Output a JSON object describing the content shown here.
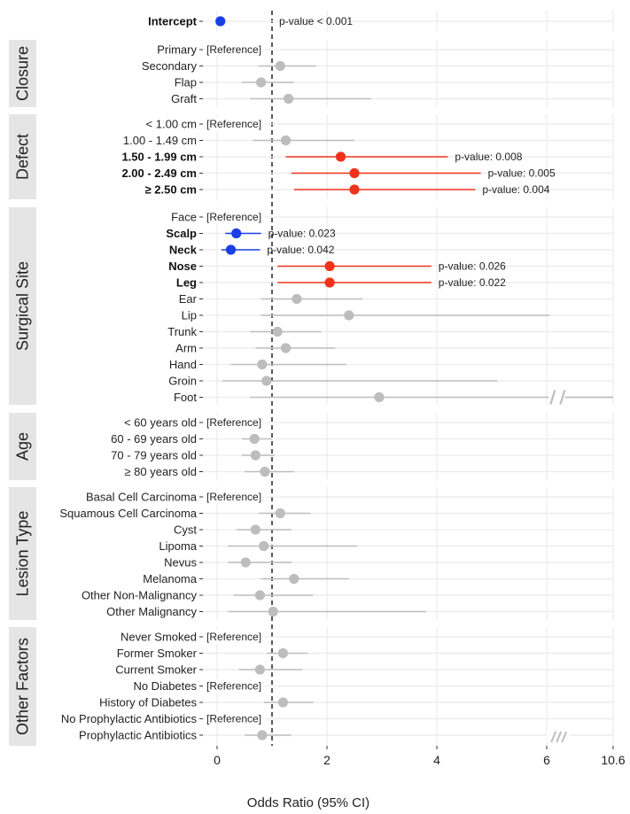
{
  "chart_data": {
    "type": "forest",
    "xlabel": "Odds Ratio (95% CI)",
    "x_ticks": [
      "0",
      "2",
      "4",
      "6",
      "10.6"
    ],
    "xlim": [
      0,
      10.6
    ],
    "reference_line": 1,
    "reference_text": "[Reference]",
    "colors": {
      "significant_high": "#f0321a",
      "significant_low": "#1a3fe6",
      "nonsignificant": "#bdbdbd",
      "panel_grid": "#ebebeb",
      "strip_bg": "#e5e5e5"
    },
    "panels": [
      {
        "label": "",
        "rows": [
          {
            "label": "Intercept",
            "bold": true,
            "or": 0.06,
            "lo": 0.06,
            "hi": 0.06,
            "color": "low",
            "pvalue": "p-value < 0.001"
          }
        ]
      },
      {
        "label": "Closure",
        "rows": [
          {
            "label": "Primary",
            "ref": true
          },
          {
            "label": "Secondary",
            "or": 1.15,
            "lo": 0.75,
            "hi": 1.8,
            "color": "ns"
          },
          {
            "label": "Flap",
            "or": 0.8,
            "lo": 0.45,
            "hi": 1.4,
            "color": "ns"
          },
          {
            "label": "Graft",
            "or": 1.3,
            "lo": 0.6,
            "hi": 2.8,
            "color": "ns"
          }
        ]
      },
      {
        "label": "Defect",
        "rows": [
          {
            "label": "< 1.00 cm",
            "ref": true
          },
          {
            "label": "1.00 - 1.49 cm",
            "or": 1.25,
            "lo": 0.65,
            "hi": 2.5,
            "color": "ns"
          },
          {
            "label": "1.50 - 1.99 cm",
            "bold": true,
            "or": 2.25,
            "lo": 1.25,
            "hi": 4.2,
            "color": "high",
            "pvalue": "p-value: 0.008"
          },
          {
            "label": "2.00 - 2.49 cm",
            "bold": true,
            "or": 2.5,
            "lo": 1.35,
            "hi": 4.8,
            "color": "high",
            "pvalue": "p-value: 0.005"
          },
          {
            "label": "≥ 2.50 cm",
            "bold": true,
            "or": 2.5,
            "lo": 1.4,
            "hi": 4.7,
            "color": "high",
            "pvalue": "p-value: 0.004"
          }
        ]
      },
      {
        "label": "Surgical Site",
        "rows": [
          {
            "label": "Face",
            "ref": true
          },
          {
            "label": "Scalp",
            "bold": true,
            "or": 0.35,
            "lo": 0.15,
            "hi": 0.8,
            "color": "low",
            "pvalue": "p-value: 0.023"
          },
          {
            "label": "Neck",
            "bold": true,
            "or": 0.25,
            "lo": 0.08,
            "hi": 0.78,
            "color": "low",
            "pvalue": "p-value: 0.042"
          },
          {
            "label": "Nose",
            "bold": true,
            "or": 2.05,
            "lo": 1.1,
            "hi": 3.9,
            "color": "high",
            "pvalue": "p-value: 0.026"
          },
          {
            "label": "Leg",
            "bold": true,
            "or": 2.05,
            "lo": 1.1,
            "hi": 3.9,
            "color": "high",
            "pvalue": "p-value: 0.022"
          },
          {
            "label": "Ear",
            "or": 1.45,
            "lo": 0.8,
            "hi": 2.65,
            "color": "ns"
          },
          {
            "label": "Lip",
            "or": 2.4,
            "lo": 0.8,
            "hi": 6.2,
            "color": "ns"
          },
          {
            "label": "Trunk",
            "or": 1.1,
            "lo": 0.6,
            "hi": 1.9,
            "color": "ns"
          },
          {
            "label": "Arm",
            "or": 1.25,
            "lo": 0.7,
            "hi": 2.15,
            "color": "ns"
          },
          {
            "label": "Hand",
            "or": 0.82,
            "lo": 0.25,
            "hi": 2.35,
            "color": "ns"
          },
          {
            "label": "Groin",
            "or": 0.9,
            "lo": 0.1,
            "hi": 5.1,
            "color": "ns"
          },
          {
            "label": "Foot",
            "or": 2.95,
            "lo": 0.6,
            "hi": 10.6,
            "color": "ns",
            "axis_break": true
          }
        ]
      },
      {
        "label": "Age",
        "rows": [
          {
            "label": "< 60 years old",
            "ref": true
          },
          {
            "label": "60 - 69 years old",
            "or": 0.68,
            "lo": 0.45,
            "hi": 1.0,
            "color": "ns"
          },
          {
            "label": "70 - 79 years old",
            "or": 0.7,
            "lo": 0.45,
            "hi": 1.05,
            "color": "ns"
          },
          {
            "label": "≥ 80 years old",
            "or": 0.87,
            "lo": 0.5,
            "hi": 1.4,
            "color": "ns"
          }
        ]
      },
      {
        "label": "Lesion Type",
        "rows": [
          {
            "label": "Basal Cell Carcinoma",
            "ref": true
          },
          {
            "label": "Squamous Cell Carcinoma",
            "or": 1.15,
            "lo": 0.75,
            "hi": 1.7,
            "color": "ns"
          },
          {
            "label": "Cyst",
            "or": 0.7,
            "lo": 0.35,
            "hi": 1.35,
            "color": "ns"
          },
          {
            "label": "Lipoma",
            "or": 0.85,
            "lo": 0.2,
            "hi": 2.55,
            "color": "ns"
          },
          {
            "label": "Nevus",
            "or": 0.52,
            "lo": 0.2,
            "hi": 1.35,
            "color": "ns"
          },
          {
            "label": "Melanoma",
            "or": 1.4,
            "lo": 0.8,
            "hi": 2.4,
            "color": "ns"
          },
          {
            "label": "Other Non-Malignancy",
            "or": 0.78,
            "lo": 0.3,
            "hi": 1.75,
            "color": "ns"
          },
          {
            "label": "Other Malignancy",
            "or": 1.02,
            "lo": 0.2,
            "hi": 3.8,
            "color": "ns"
          }
        ]
      },
      {
        "label": "Other Factors",
        "rows": [
          {
            "label": "Never Smoked",
            "ref": true
          },
          {
            "label": "Former Smoker",
            "or": 1.2,
            "lo": 0.9,
            "hi": 1.65,
            "color": "ns"
          },
          {
            "label": "Current Smoker",
            "or": 0.78,
            "lo": 0.4,
            "hi": 1.55,
            "color": "ns"
          },
          {
            "label": "No Diabetes",
            "ref": true
          },
          {
            "label": "History of Diabetes",
            "or": 1.2,
            "lo": 0.85,
            "hi": 1.75,
            "color": "ns"
          },
          {
            "label": "No Prophylactic Antibiotics",
            "ref": true
          },
          {
            "label": "Prophylactic Antibiotics",
            "or": 0.82,
            "lo": 0.5,
            "hi": 1.35,
            "color": "ns"
          }
        ]
      }
    ]
  }
}
